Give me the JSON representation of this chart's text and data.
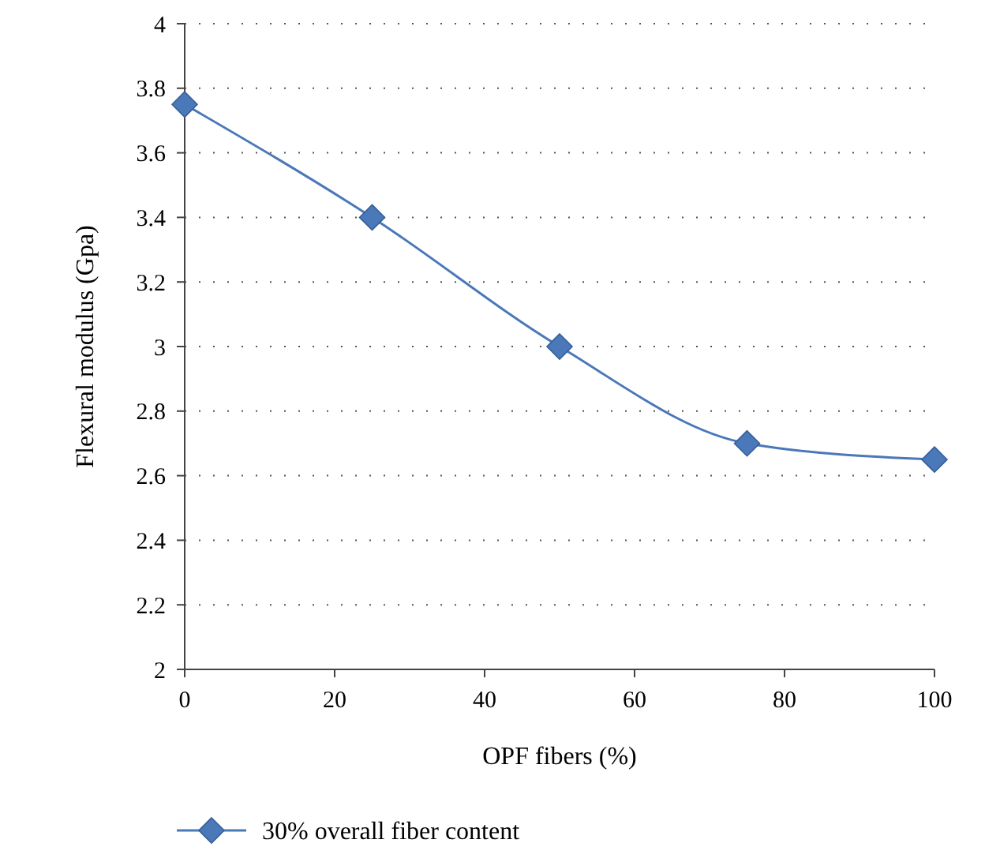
{
  "chart_data": {
    "type": "line",
    "xlabel": "OPF fibers (%)",
    "ylabel": "Flexural modulus (Gpa)",
    "x": [
      0,
      25,
      50,
      75,
      100
    ],
    "series": [
      {
        "name": "30% overall fiber content",
        "color": "#4a78b8",
        "values": [
          3.75,
          3.4,
          3.0,
          2.7,
          2.65
        ]
      }
    ],
    "xlim": [
      0,
      100
    ],
    "xticks": [
      0,
      20,
      40,
      60,
      80,
      100
    ],
    "ylim": [
      2,
      4
    ],
    "yticks": [
      2,
      2.2,
      2.4,
      2.6,
      2.8,
      3,
      3.2,
      3.4,
      3.6,
      3.8,
      4
    ],
    "grid": "y",
    "legend": "bottom",
    "marker": "diamond",
    "line_style": "solid"
  }
}
